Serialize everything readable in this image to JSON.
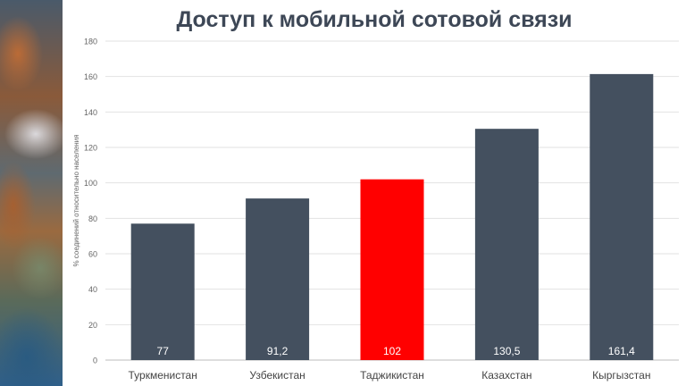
{
  "chart_data": {
    "type": "bar",
    "title": "Доступ к мобильной сотовой связи",
    "ylabel": "% соединений относительно населения",
    "xlabel": "",
    "categories": [
      "Туркменистан",
      "Узбекистан",
      "Таджикистан",
      "Казахстан",
      "Кыргызстан"
    ],
    "values": [
      77,
      91.2,
      102,
      130.5,
      161.4
    ],
    "value_labels": [
      "77",
      "91,2",
      "102",
      "130,5",
      "161,4"
    ],
    "highlight_index": 2,
    "ylim": [
      0,
      180
    ],
    "yticks": [
      "0",
      "20",
      "40",
      "60",
      "80",
      "100",
      "120",
      "140",
      "160",
      "180"
    ],
    "grid": true,
    "colors": {
      "bar": "#44505f",
      "highlight": "#ff0000",
      "grid": "#e2e2e2",
      "axis_text": "#666666",
      "label_text": "#ffffff"
    }
  },
  "decor": {
    "side_image": "mountain-satellite-image"
  }
}
